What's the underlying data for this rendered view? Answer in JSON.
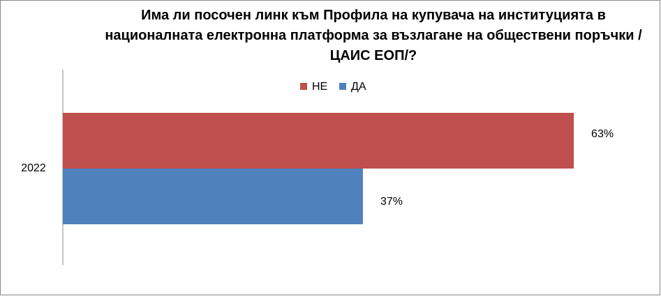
{
  "chart_data": {
    "type": "hbar",
    "title": "Има ли посочен линк към Профила на купувача на институцията в националната електронна платформа за възлагане на обществени поръчки /ЦАИС ЕОП/?",
    "categories": [
      "2022"
    ],
    "series": [
      {
        "name": "НЕ",
        "color": "#c0504d",
        "values": [
          63
        ],
        "value_labels": [
          "63%"
        ]
      },
      {
        "name": "ДА",
        "color": "#4f81bd",
        "values": [
          37
        ],
        "value_labels": [
          "37%"
        ]
      }
    ],
    "legend": "top"
  }
}
